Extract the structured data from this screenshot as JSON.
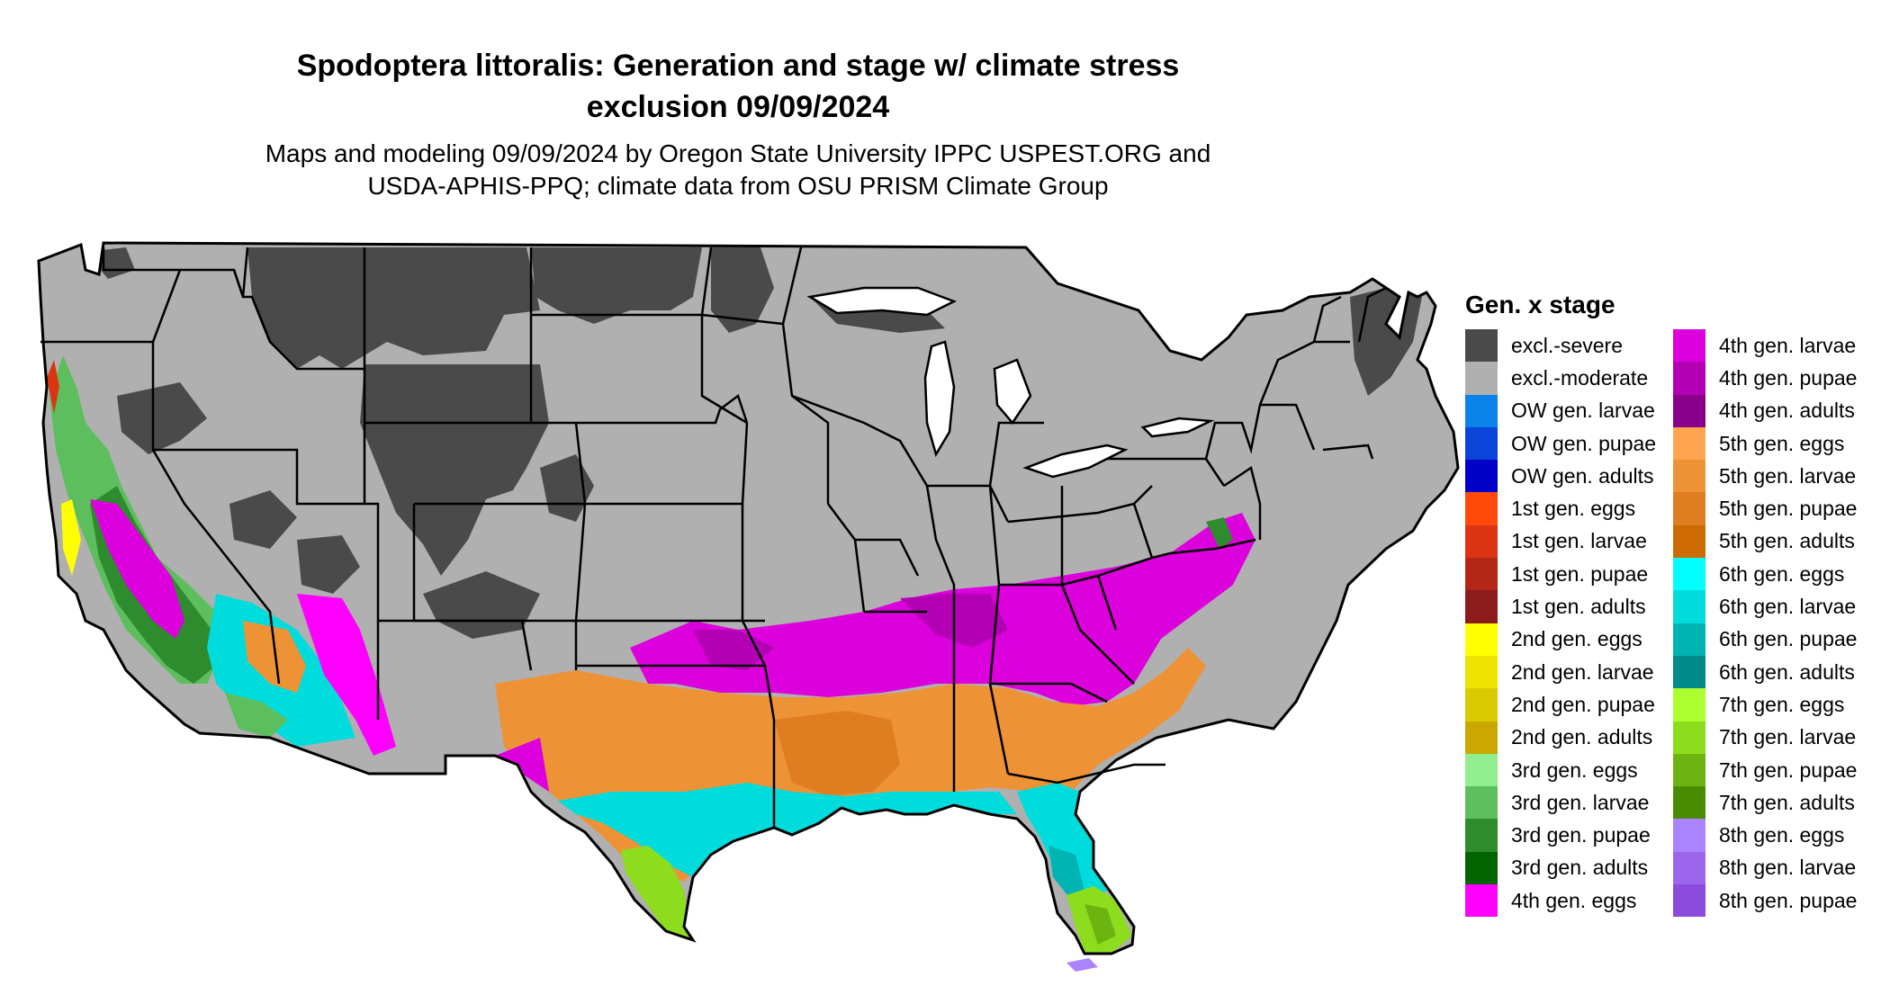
{
  "title_line1": "Spodoptera littoralis: Generation and stage w/ climate stress",
  "title_line2": "exclusion 09/09/2024",
  "subtitle_line1": "Maps and modeling 09/09/2024 by Oregon State University IPPC USPEST.ORG and",
  "subtitle_line2": "USDA-APHIS-PPQ; climate data from OSU PRISM Climate Group",
  "legend": {
    "title": "Gen. x stage",
    "items": [
      {
        "label": "excl.-severe",
        "color": "#4a4a4a"
      },
      {
        "label": "excl.-moderate",
        "color": "#b0b0b0"
      },
      {
        "label": "OW gen. larvae",
        "color": "#0a84e8"
      },
      {
        "label": "OW gen. pupae",
        "color": "#0a44d8"
      },
      {
        "label": "OW gen. adults",
        "color": "#0000c8"
      },
      {
        "label": "1st gen. eggs",
        "color": "#ff4a0a"
      },
      {
        "label": "1st gen. larvae",
        "color": "#dc3412"
      },
      {
        "label": "1st gen. pupae",
        "color": "#b42618"
      },
      {
        "label": "1st gen. adults",
        "color": "#8c1c1c"
      },
      {
        "label": "2nd gen. eggs",
        "color": "#ffff00"
      },
      {
        "label": "2nd gen. larvae",
        "color": "#eee400"
      },
      {
        "label": "2nd gen. pupae",
        "color": "#dcca00"
      },
      {
        "label": "2nd gen. adults",
        "color": "#caa800"
      },
      {
        "label": "3rd gen. eggs",
        "color": "#90ee90"
      },
      {
        "label": "3rd gen. larvae",
        "color": "#5cbe5c"
      },
      {
        "label": "3rd gen. pupae",
        "color": "#2e8b2e"
      },
      {
        "label": "3rd gen. adults",
        "color": "#006400"
      },
      {
        "label": "4th gen. eggs",
        "color": "#ff00ff"
      },
      {
        "label": "4th gen. larvae",
        "color": "#dc00dc"
      },
      {
        "label": "4th gen. pupae",
        "color": "#b400b4"
      },
      {
        "label": "4th gen. adults",
        "color": "#8b008b"
      },
      {
        "label": "5th gen. eggs",
        "color": "#ffa54f"
      },
      {
        "label": "5th gen. larvae",
        "color": "#ee9236"
      },
      {
        "label": "5th gen. pupae",
        "color": "#de7e20"
      },
      {
        "label": "5th gen. adults",
        "color": "#cd6a00"
      },
      {
        "label": "6th gen. eggs",
        "color": "#00ffff"
      },
      {
        "label": "6th gen. larvae",
        "color": "#00dcdc"
      },
      {
        "label": "6th gen. pupae",
        "color": "#00b4b4"
      },
      {
        "label": "6th gen. adults",
        "color": "#008b8b"
      },
      {
        "label": "7th gen. eggs",
        "color": "#adff2f"
      },
      {
        "label": "7th gen. larvae",
        "color": "#8edc1e"
      },
      {
        "label": "7th gen. pupae",
        "color": "#6cb410"
      },
      {
        "label": "7th gen. adults",
        "color": "#4a8c00"
      },
      {
        "label": "8th gen. eggs",
        "color": "#ab82ff"
      },
      {
        "label": "8th gen. larvae",
        "color": "#9b66ec"
      },
      {
        "label": "8th gen. pupae",
        "color": "#8a4adc"
      }
    ]
  }
}
